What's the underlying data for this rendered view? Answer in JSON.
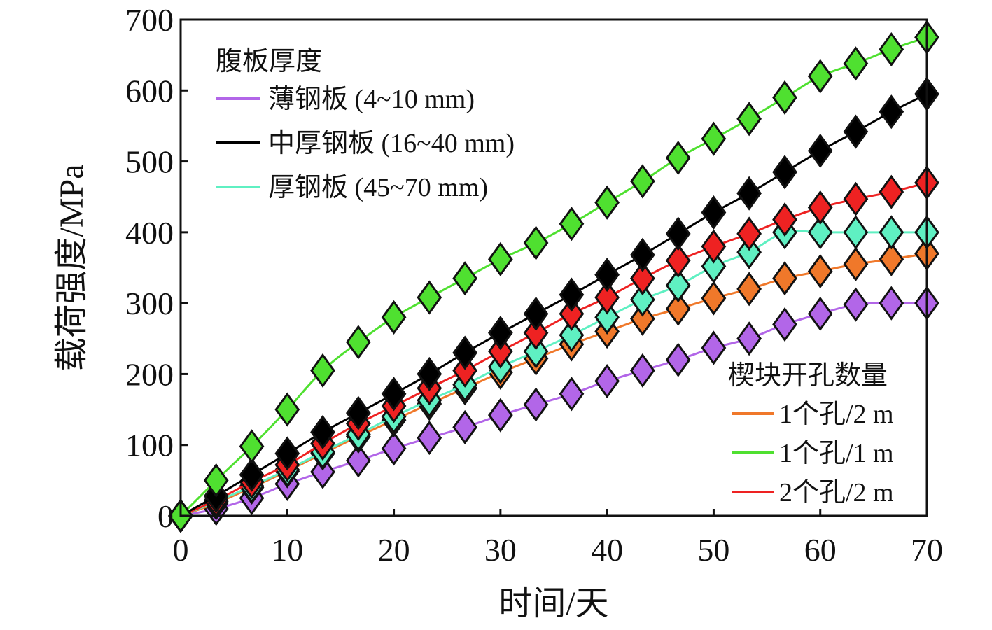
{
  "chart_data": {
    "type": "line",
    "title": "",
    "xlabel": "时间/天",
    "ylabel": "载荷强度/MPa",
    "xlim": [
      0,
      70
    ],
    "ylim": [
      0,
      700
    ],
    "xticks": [
      0,
      10,
      20,
      30,
      40,
      50,
      60,
      70
    ],
    "yticks": [
      0,
      100,
      200,
      300,
      400,
      500,
      600,
      700
    ],
    "grid": false,
    "x": [
      0,
      3.33,
      6.67,
      10,
      13.33,
      16.67,
      20,
      23.33,
      26.67,
      30,
      33.33,
      36.67,
      40,
      43.33,
      46.67,
      50,
      53.33,
      56.67,
      60,
      63.33,
      66.67,
      70
    ],
    "legends": [
      {
        "title": "腹板厚度",
        "placement": "top-left",
        "entries": [
          {
            "label": "薄钢板 (4~10 mm)",
            "series": "thin"
          },
          {
            "label": "中厚钢板 (16~40 mm)",
            "series": "medium"
          },
          {
            "label": "厚钢板 (45~70 mm)",
            "series": "thick"
          }
        ]
      },
      {
        "title": "楔块开孔数量",
        "placement": "bottom-right",
        "entries": [
          {
            "label": "1个孔/2 m",
            "series": "h1_2"
          },
          {
            "label": "1个孔/1 m",
            "series": "h1_1"
          },
          {
            "label": "2个孔/2 m",
            "series": "h2_2"
          }
        ]
      }
    ],
    "series": [
      {
        "id": "thin",
        "name": "薄钢板 (4~10 mm)",
        "color": "#b266e8",
        "values": [
          0,
          10,
          25,
          45,
          62,
          78,
          95,
          110,
          125,
          142,
          157,
          172,
          190,
          205,
          220,
          237,
          250,
          270,
          285,
          298,
          300,
          300
        ]
      },
      {
        "id": "h1_2",
        "name": "1个孔/2 m",
        "color": "#f0782a",
        "values": [
          0,
          18,
          40,
          63,
          88,
          112,
          135,
          158,
          180,
          202,
          222,
          242,
          260,
          278,
          292,
          307,
          320,
          335,
          345,
          355,
          362,
          370
        ]
      },
      {
        "id": "thick",
        "name": "厚钢板 (45~70 mm)",
        "color": "#5ff0c2",
        "values": [
          0,
          20,
          42,
          65,
          90,
          115,
          140,
          163,
          185,
          210,
          232,
          255,
          280,
          305,
          325,
          352,
          372,
          400,
          400,
          400,
          400,
          400
        ]
      },
      {
        "id": "h2_2",
        "name": "2个孔/2 m",
        "color": "#ee2222",
        "values": [
          0,
          22,
          48,
          72,
          102,
          130,
          155,
          180,
          205,
          232,
          258,
          285,
          308,
          335,
          360,
          380,
          398,
          418,
          435,
          447,
          457,
          470
        ]
      },
      {
        "id": "medium",
        "name": "中厚钢板 (16~40 mm)",
        "color": "#000000",
        "values": [
          0,
          28,
          58,
          88,
          118,
          145,
          172,
          200,
          230,
          258,
          285,
          312,
          340,
          368,
          398,
          428,
          455,
          485,
          515,
          542,
          570,
          595
        ]
      },
      {
        "id": "h1_1",
        "name": "1个孔/1 m",
        "color": "#4fe030",
        "values": [
          0,
          50,
          98,
          150,
          205,
          245,
          280,
          308,
          335,
          362,
          385,
          412,
          442,
          472,
          505,
          532,
          560,
          590,
          620,
          638,
          658,
          675
        ]
      }
    ]
  }
}
